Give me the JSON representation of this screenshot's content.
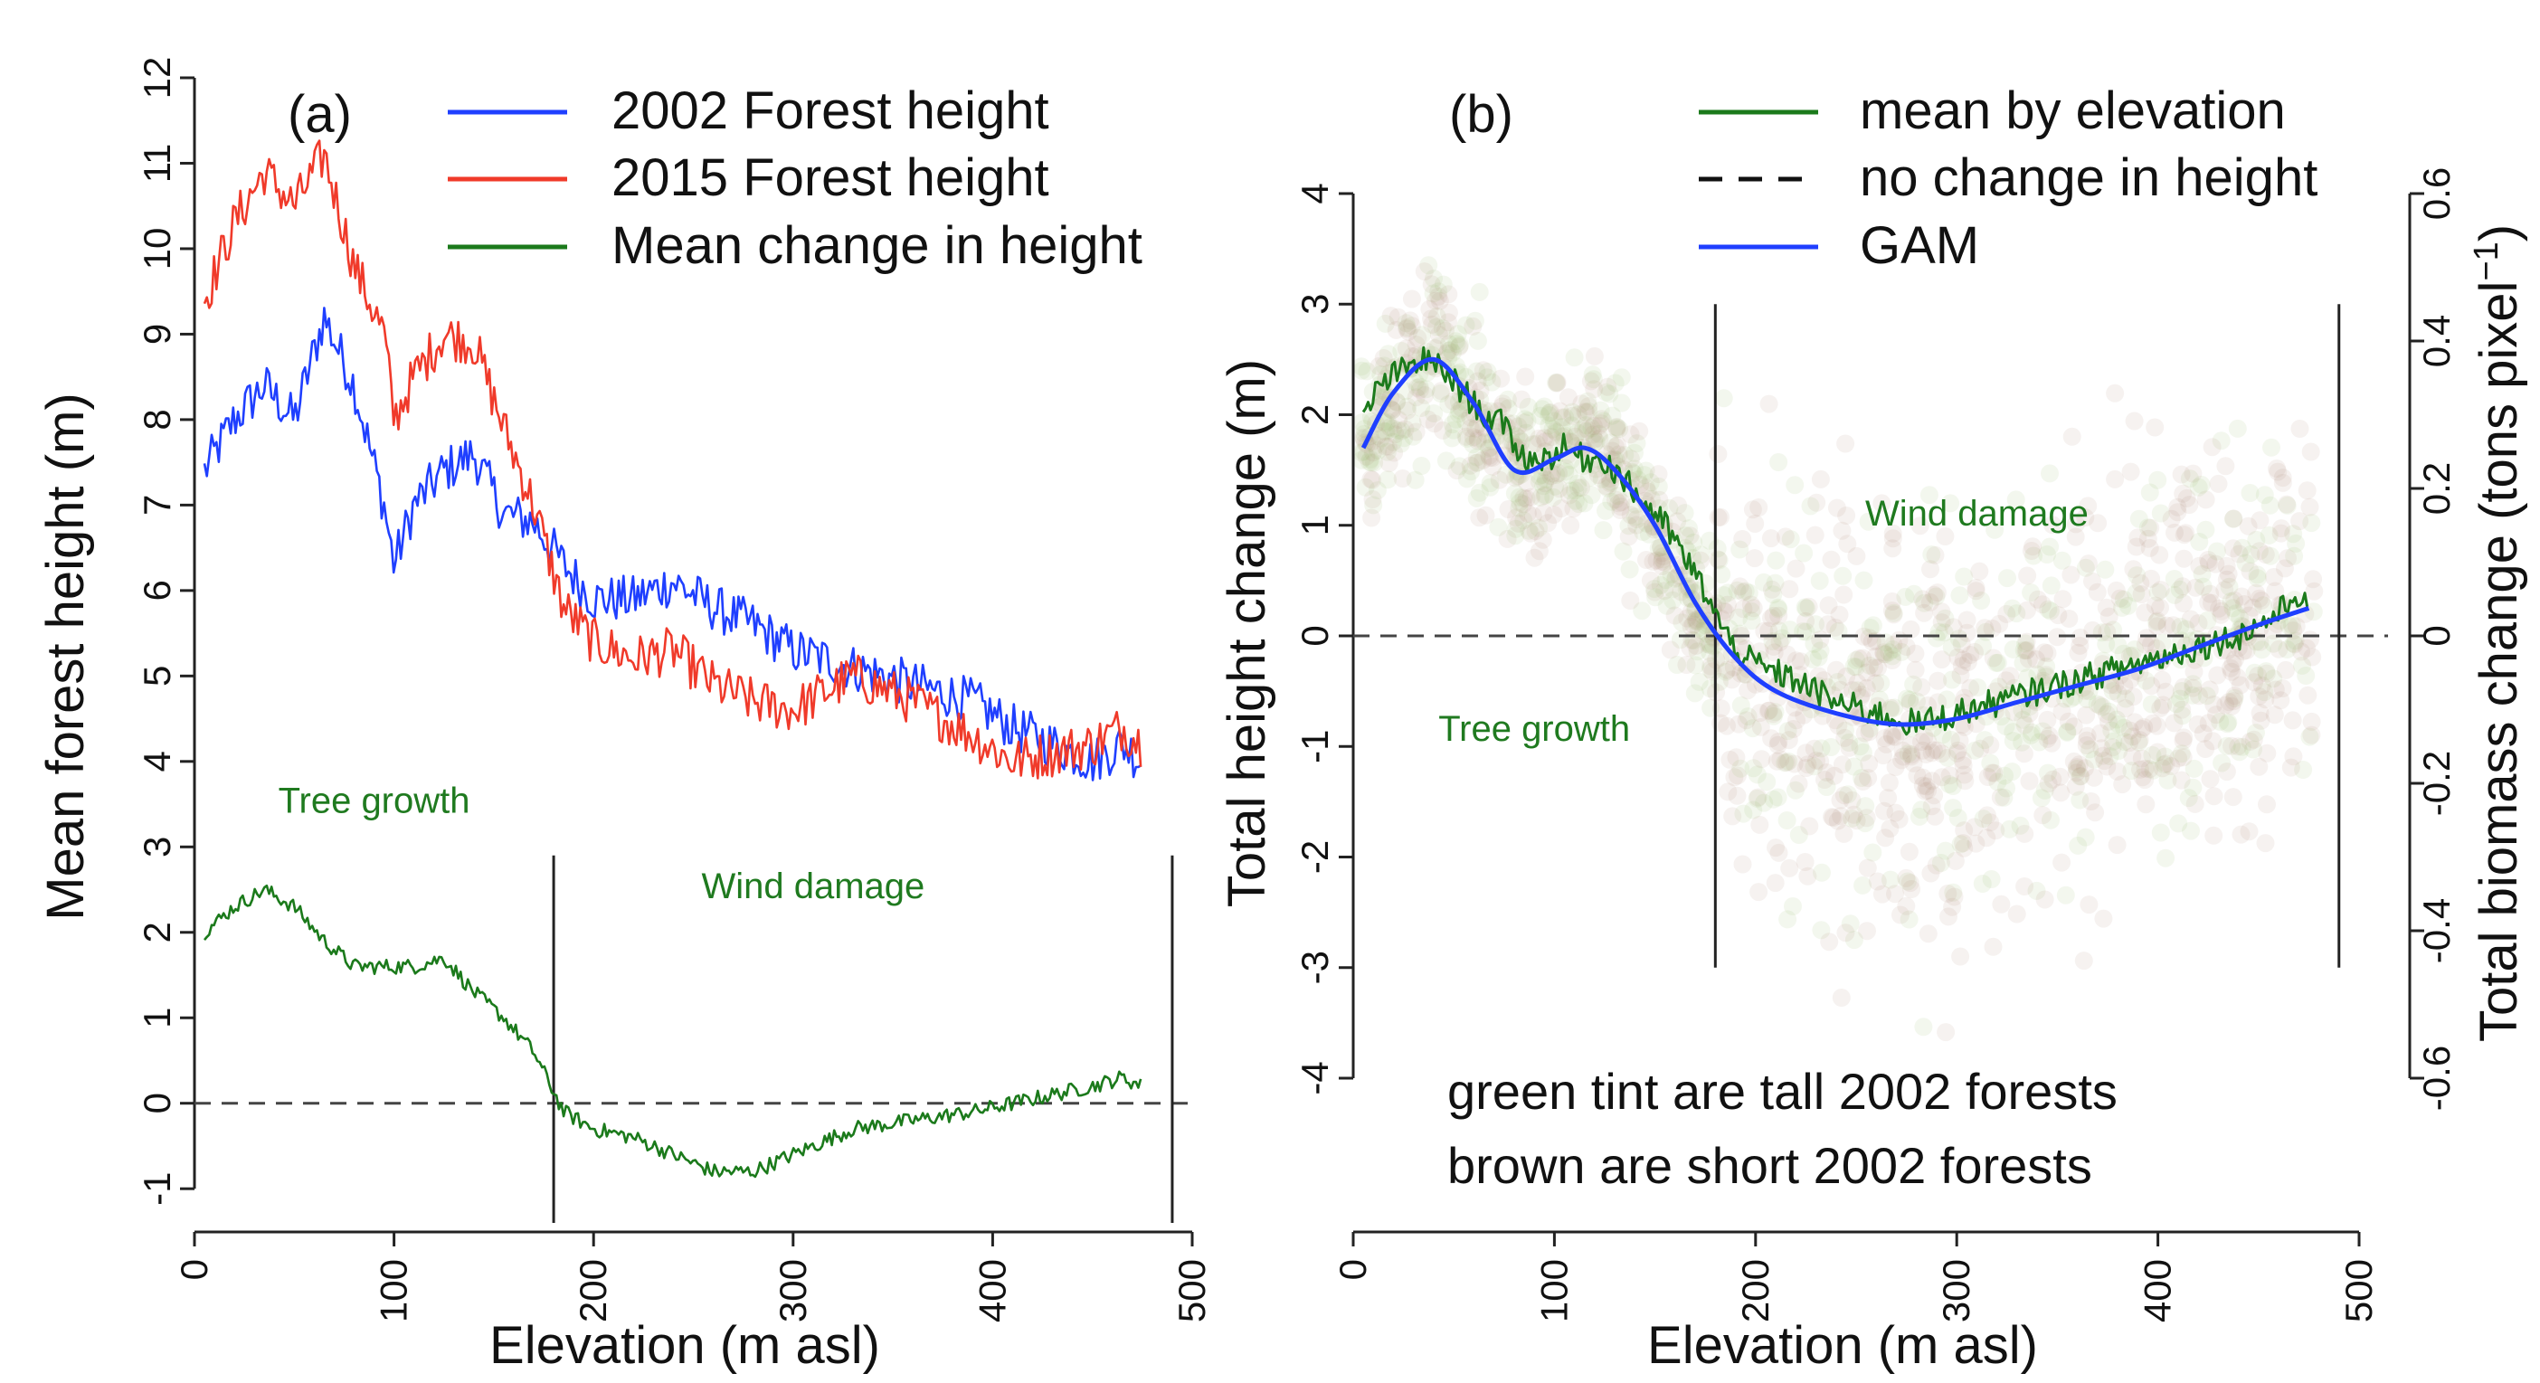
{
  "colors": {
    "blue": "#1f3fff",
    "red": "#f03a2a",
    "green": "#1b7a1b",
    "dashed": "#444444",
    "axis": "#222222",
    "tall_tint": "#9fbf78",
    "short_tint": "#b08a7a"
  },
  "chart_data": [
    {
      "type": "line",
      "panel_label": "(a)",
      "xlabel": "Elevation (m asl)",
      "ylabel": "Mean forest height (m)",
      "xlim": [
        0,
        500
      ],
      "ylim": [
        -1.4,
        12
      ],
      "xticks": [
        "0",
        "100",
        "200",
        "300",
        "400",
        "500"
      ],
      "yticks": [
        "-1",
        "0",
        "1",
        "2",
        "3",
        "4",
        "5",
        "6",
        "7",
        "8",
        "9",
        "10",
        "11",
        "12"
      ],
      "legend": [
        {
          "label": "2002 Forest height",
          "color": "#1f3fff",
          "style": "solid"
        },
        {
          "label": "2015 Forest height",
          "color": "#f03a2a",
          "style": "solid"
        },
        {
          "label": "Mean change in height",
          "color": "#1b7a1b",
          "style": "solid"
        }
      ],
      "series": [
        {
          "name": "2002 Forest height",
          "color": "#1f3fff",
          "x": [
            5,
            20,
            35,
            50,
            65,
            80,
            95,
            100,
            110,
            125,
            140,
            155,
            170,
            185,
            200,
            220,
            240,
            260,
            280,
            300,
            330,
            360,
            390,
            410,
            430,
            450,
            465,
            475
          ],
          "y": [
            7.4,
            8.0,
            8.4,
            8.0,
            9.2,
            8.4,
            7.0,
            6.3,
            7.0,
            7.4,
            7.6,
            6.9,
            6.8,
            6.3,
            5.9,
            5.9,
            6.1,
            5.8,
            5.6,
            5.3,
            5.1,
            4.9,
            4.7,
            4.4,
            4.2,
            4.0,
            4.2,
            4.0
          ]
        },
        {
          "name": "2015 Forest height",
          "color": "#f03a2a",
          "x": [
            5,
            20,
            35,
            50,
            65,
            80,
            95,
            100,
            110,
            125,
            140,
            155,
            170,
            185,
            200,
            220,
            240,
            260,
            280,
            300,
            330,
            360,
            390,
            410,
            430,
            450,
            465,
            475
          ],
          "y": [
            9.4,
            10.3,
            10.9,
            10.5,
            11.1,
            9.8,
            9.0,
            8.0,
            8.5,
            9.0,
            8.9,
            7.9,
            7.0,
            5.8,
            5.4,
            5.2,
            5.3,
            4.9,
            4.7,
            4.6,
            5.0,
            4.7,
            4.3,
            4.0,
            4.1,
            4.2,
            4.4,
            4.2
          ]
        },
        {
          "name": "Mean change in height",
          "color": "#1b7a1b",
          "x": [
            5,
            20,
            35,
            50,
            65,
            80,
            95,
            110,
            125,
            140,
            155,
            170,
            185,
            200,
            220,
            240,
            260,
            280,
            300,
            330,
            360,
            390,
            410,
            430,
            450,
            465,
            475
          ],
          "y": [
            2.0,
            2.3,
            2.5,
            2.3,
            1.9,
            1.6,
            1.6,
            1.6,
            1.7,
            1.3,
            1.0,
            0.6,
            -0.1,
            -0.3,
            -0.4,
            -0.6,
            -0.8,
            -0.8,
            -0.6,
            -0.3,
            -0.2,
            -0.1,
            0.0,
            0.1,
            0.2,
            0.3,
            0.2
          ]
        }
      ],
      "reference_line": {
        "y": 0,
        "style": "dashed"
      },
      "vertical_lines_x": [
        180,
        490
      ],
      "annotations": [
        {
          "text": "Tree growth",
          "x": 90,
          "y": 3.4
        },
        {
          "text": "Wind damage",
          "x": 310,
          "y": 2.4
        }
      ]
    },
    {
      "type": "scatter",
      "panel_label": "(b)",
      "xlabel": "Elevation (m asl)",
      "ylabel": "Total height change (m)",
      "y2label": "Total biomass change (tons pixel",
      "y2label_superscript": "−1",
      "y2label_close": ")",
      "xlim": [
        0,
        500
      ],
      "ylim": [
        -4,
        4
      ],
      "y2lim": [
        -0.6,
        0.6
      ],
      "xticks": [
        "0",
        "100",
        "200",
        "300",
        "400",
        "500"
      ],
      "yticks": [
        "-4",
        "-3",
        "-2",
        "-1",
        "0",
        "1",
        "2",
        "3",
        "4"
      ],
      "y2ticks": [
        "-0.6",
        "-0.4",
        "-0.2",
        "0",
        "0.2",
        "0.4",
        "0.6"
      ],
      "legend": [
        {
          "label": "mean by elevation",
          "color": "#1b7a1b",
          "style": "solid"
        },
        {
          "label": "no change in height",
          "color": "#111111",
          "style": "dashed"
        },
        {
          "label": "GAM",
          "color": "#1f3fff",
          "style": "solid"
        }
      ],
      "series": [
        {
          "name": "mean by elevation",
          "color": "#1b7a1b",
          "x": [
            5,
            15,
            25,
            35,
            45,
            55,
            65,
            75,
            85,
            95,
            105,
            115,
            125,
            135,
            145,
            155,
            165,
            175,
            185,
            195,
            205,
            220,
            240,
            260,
            280,
            300,
            320,
            340,
            360,
            380,
            400,
            420,
            440,
            460,
            470,
            475
          ],
          "y": [
            2.0,
            2.3,
            2.4,
            2.5,
            2.4,
            2.2,
            2.0,
            1.9,
            1.6,
            1.6,
            1.7,
            1.6,
            1.6,
            1.4,
            1.2,
            1.0,
            0.7,
            0.4,
            0.0,
            -0.2,
            -0.3,
            -0.4,
            -0.6,
            -0.7,
            -0.8,
            -0.7,
            -0.6,
            -0.5,
            -0.4,
            -0.3,
            -0.2,
            -0.1,
            0.0,
            0.2,
            0.4,
            0.2
          ]
        },
        {
          "name": "GAM",
          "color": "#1f3fff",
          "x": [
            5,
            20,
            40,
            60,
            80,
            100,
            115,
            130,
            150,
            170,
            190,
            210,
            240,
            270,
            300,
            330,
            360,
            390,
            420,
            450,
            475
          ],
          "y": [
            1.7,
            2.2,
            2.5,
            2.1,
            1.5,
            1.6,
            1.7,
            1.5,
            1.0,
            0.3,
            -0.2,
            -0.5,
            -0.7,
            -0.8,
            -0.75,
            -0.6,
            -0.45,
            -0.3,
            -0.1,
            0.1,
            0.25
          ]
        }
      ],
      "scatter_note": "translucent points: green = tall 2002 forests, brown = short 2002 forests",
      "reference_line": {
        "y": 0,
        "style": "dashed"
      },
      "vertical_lines_x": [
        180,
        490
      ],
      "annotations": [
        {
          "text": "Tree growth",
          "x": 90,
          "y": -0.95
        },
        {
          "text": "Wind damage",
          "x": 310,
          "y": 1.0
        }
      ],
      "notes": [
        "green tint are tall 2002 forests",
        "brown are short 2002 forests"
      ]
    }
  ]
}
